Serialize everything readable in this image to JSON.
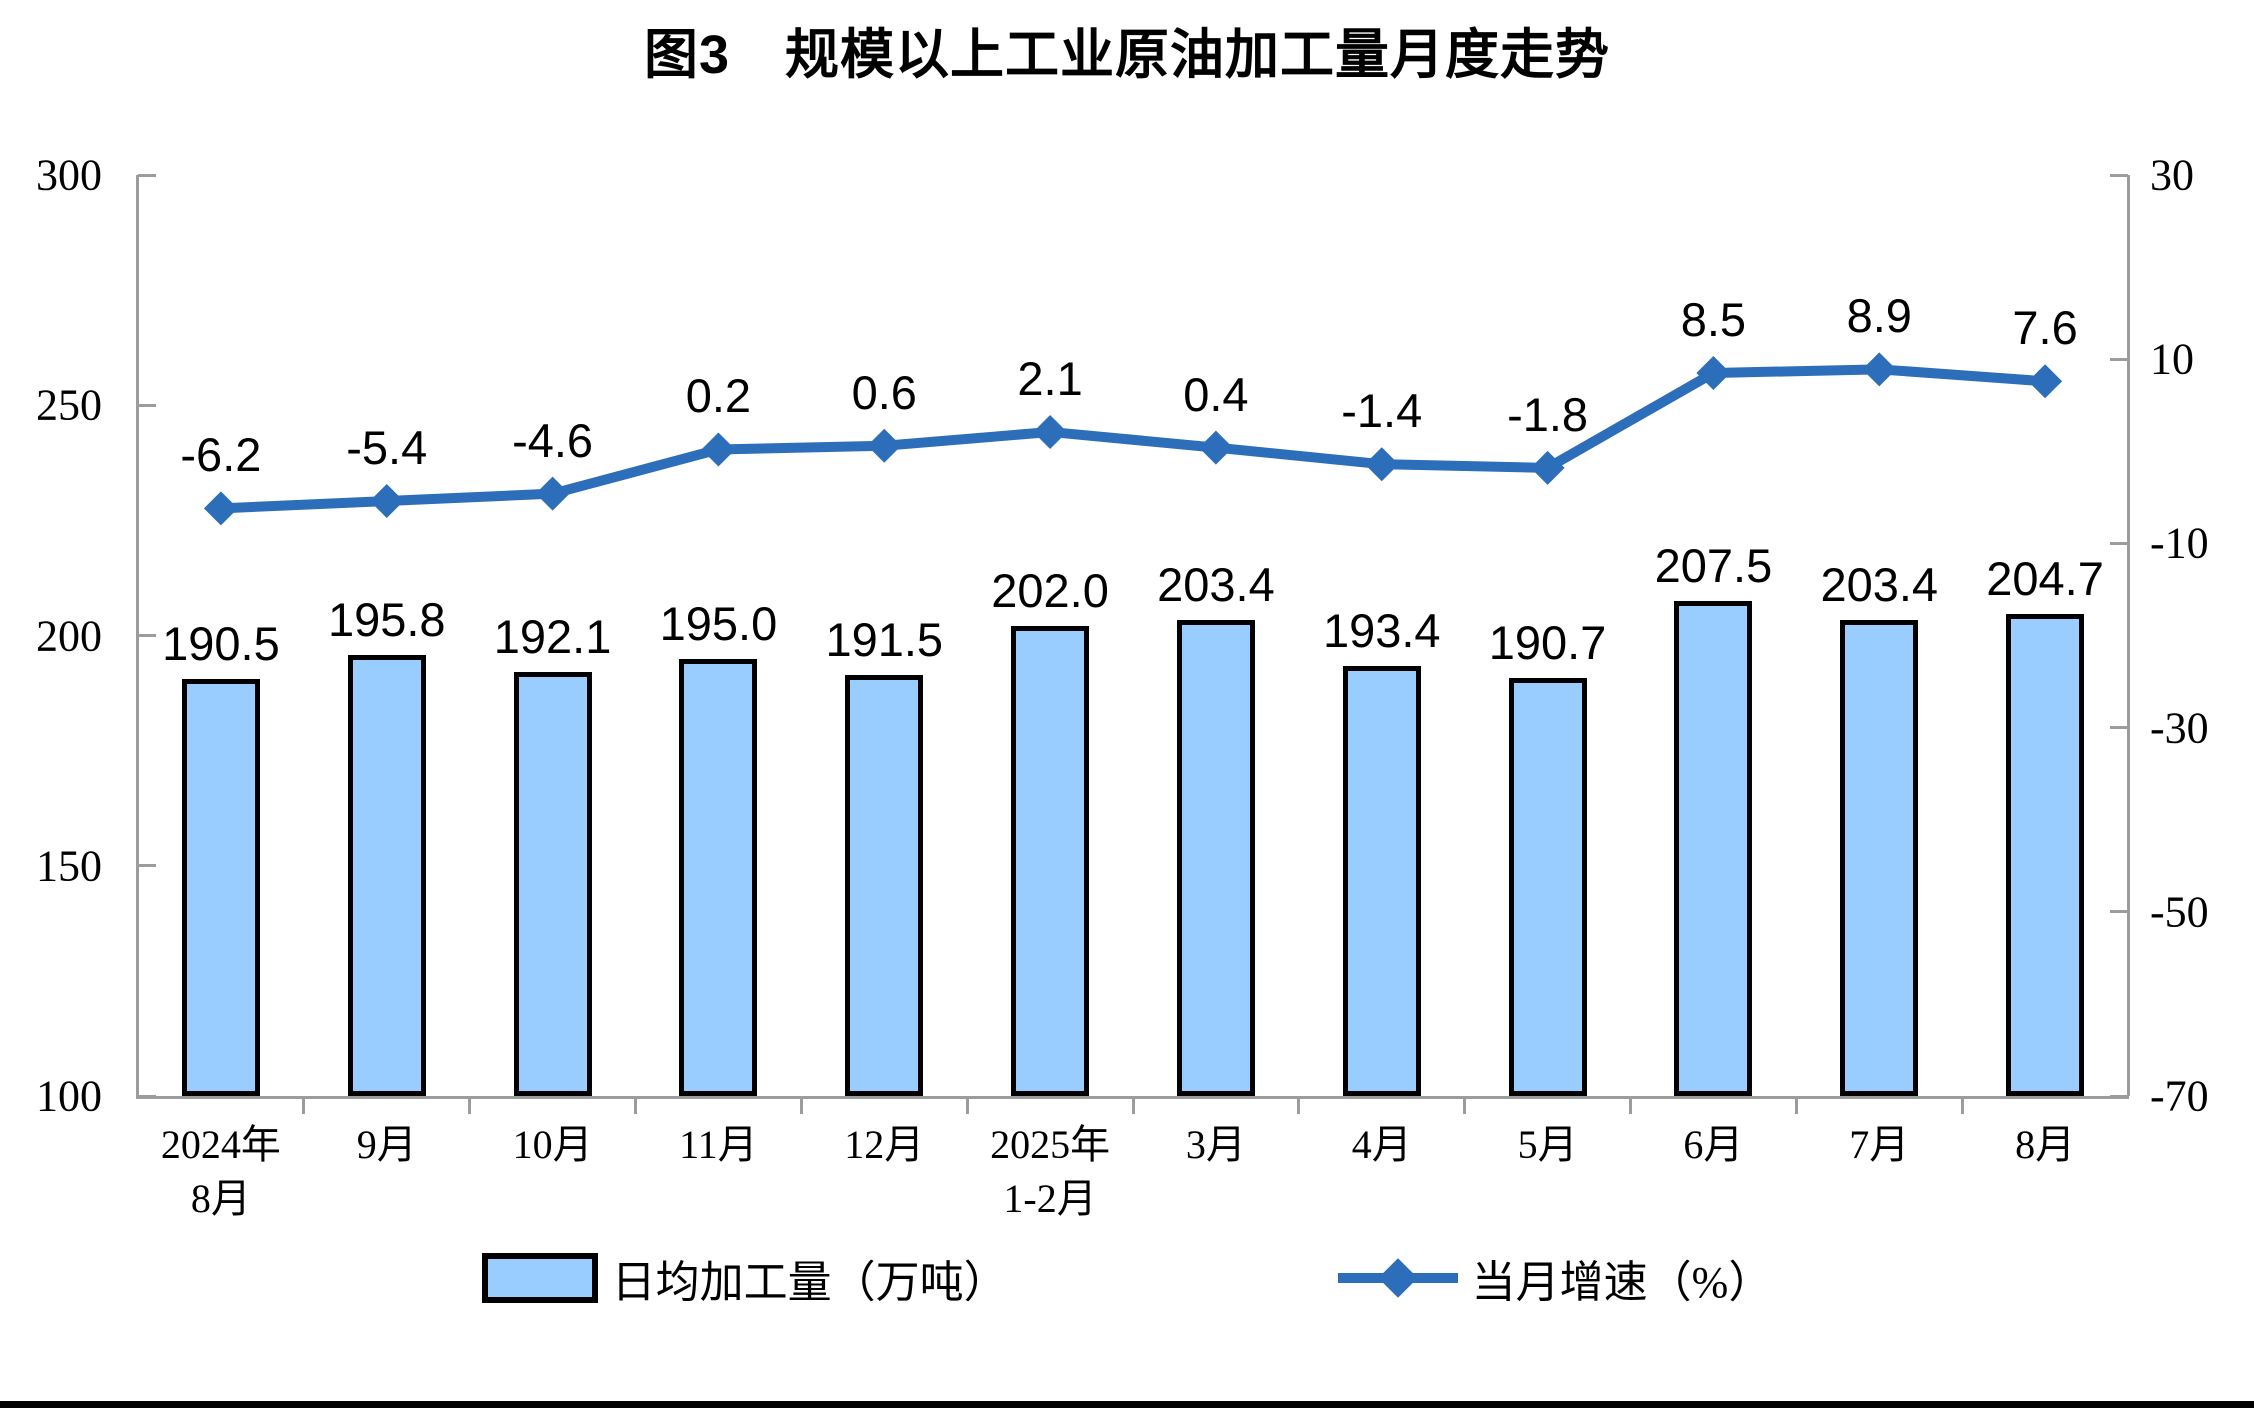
{
  "title": "图3　规模以上工业原油加工量月度走势",
  "chart_data": {
    "type": "combo_bar_line",
    "categories": [
      "2024年\n8月",
      "9月",
      "10月",
      "11月",
      "12月",
      "2025年\n1-2月",
      "3月",
      "4月",
      "5月",
      "6月",
      "7月",
      "8月"
    ],
    "series": [
      {
        "name": "日均加工量（万吨）",
        "type": "bar",
        "axis": "left",
        "values": [
          190.5,
          195.8,
          192.1,
          195.0,
          191.5,
          202.0,
          203.4,
          193.4,
          190.7,
          207.5,
          203.4,
          204.7
        ]
      },
      {
        "name": "当月增速（%）",
        "type": "line",
        "axis": "right",
        "values": [
          -6.2,
          -5.4,
          -4.6,
          0.2,
          0.6,
          2.1,
          0.4,
          -1.4,
          -1.8,
          8.5,
          8.9,
          7.6
        ]
      }
    ],
    "left_axis": {
      "min": 100,
      "max": 300,
      "ticks": [
        300,
        250,
        200,
        150,
        100
      ]
    },
    "right_axis": {
      "min": -70,
      "max": 30,
      "ticks": [
        30,
        10,
        -10,
        -30,
        -50,
        -70
      ]
    },
    "legend_position": "bottom",
    "grid": false,
    "data_labels": true,
    "colors": {
      "bar_fill": "#99CCFF",
      "bar_border": "#000000",
      "line": "#2D6EBA",
      "axis_line": "#9C9C9C",
      "text": "#000000"
    }
  }
}
